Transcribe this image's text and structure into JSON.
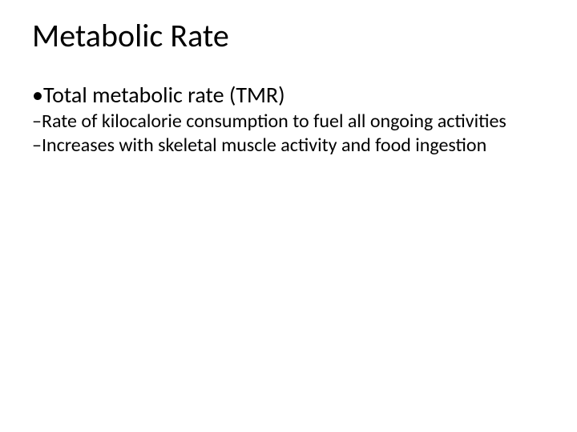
{
  "slide": {
    "title": "Metabolic Rate",
    "background_color": "#ffffff",
    "text_color": "#000000",
    "title_fontsize": 40,
    "body_fontsize_l1": 28,
    "body_fontsize_l2": 24,
    "font_family": "Calibri",
    "bullets": [
      {
        "level": 1,
        "marker": "•",
        "text": "Total metabolic rate (TMR)"
      },
      {
        "level": 2,
        "marker": "–",
        "text": "Rate of kilocalorie consumption to fuel all ongoing activities"
      },
      {
        "level": 2,
        "marker": "–",
        "text": "Increases with skeletal muscle activity and food ingestion"
      }
    ]
  }
}
